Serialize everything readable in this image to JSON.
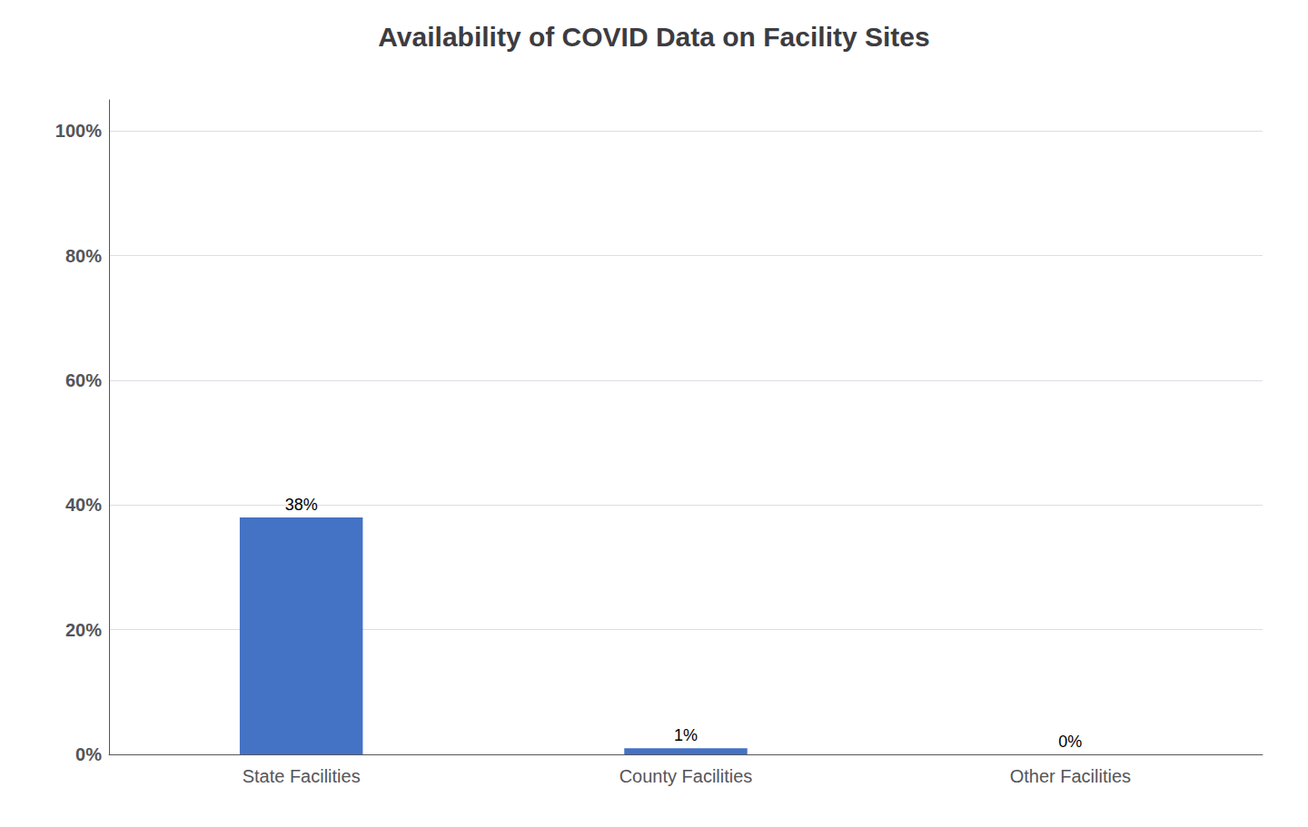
{
  "chart_data": {
    "type": "bar",
    "title": "Availability of COVID Data on Facility Sites",
    "categories": [
      "State Facilities",
      "County Facilities",
      "Other Facilities"
    ],
    "values": [
      0.38,
      0.01,
      0.0
    ],
    "value_labels": [
      "38%",
      "1%",
      "0%"
    ],
    "data_labels": true,
    "color": "#4472c4",
    "ylim": [
      0,
      1.05
    ],
    "yticks": [
      {
        "value": 0.0,
        "label": "0%"
      },
      {
        "value": 0.2,
        "label": "20%"
      },
      {
        "value": 0.4,
        "label": "40%"
      },
      {
        "value": 0.6,
        "label": "60%"
      },
      {
        "value": 0.8,
        "label": "80%"
      },
      {
        "value": 1.0,
        "label": "100%"
      }
    ],
    "grid": true
  }
}
